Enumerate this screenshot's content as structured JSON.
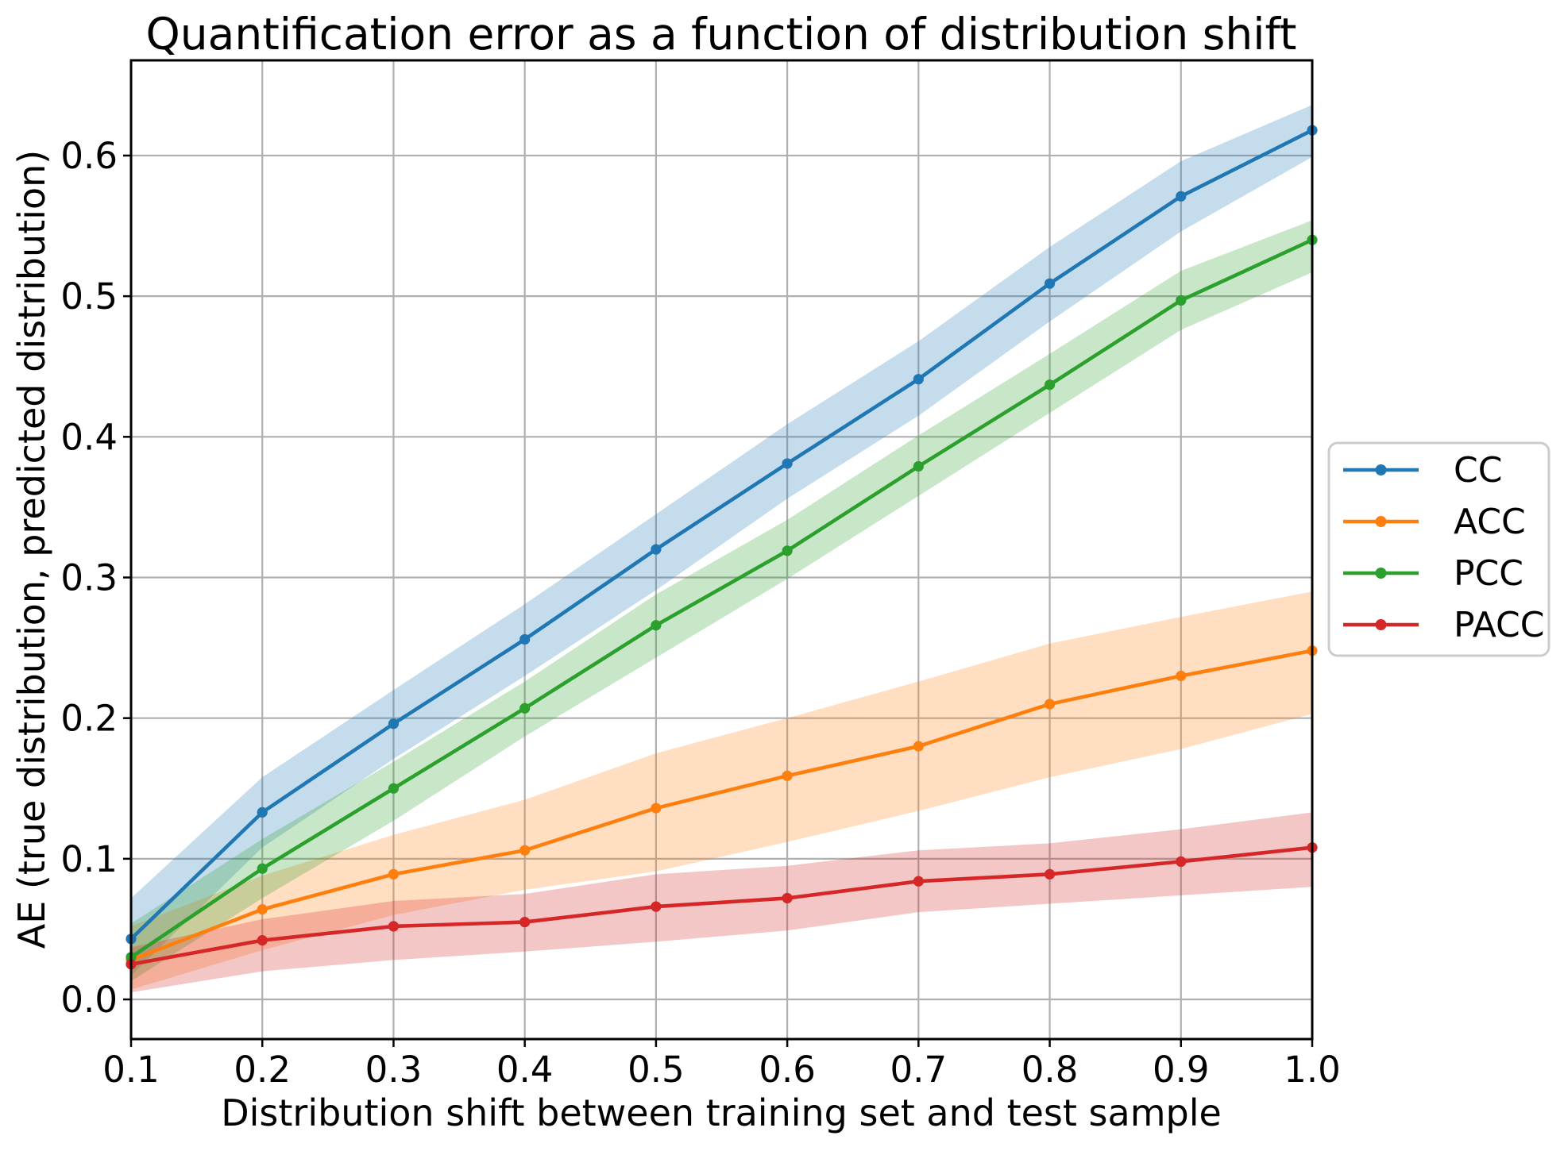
{
  "chart_data": {
    "type": "line",
    "title": "Quantification error as a function of distribution shift",
    "xlabel": "Distribution shift between training set and test sample",
    "ylabel": "AE (true distribution, predicted distribution)",
    "x": [
      0.1,
      0.2,
      0.3,
      0.4,
      0.5,
      0.6,
      0.7,
      0.8,
      0.9,
      1.0
    ],
    "xtick_labels": [
      "0.1",
      "0.2",
      "0.3",
      "0.4",
      "0.5",
      "0.6",
      "0.7",
      "0.8",
      "0.9",
      "1.0"
    ],
    "ytick_values": [
      0.0,
      0.1,
      0.2,
      0.3,
      0.4,
      0.5,
      0.6
    ],
    "ytick_labels": [
      "0.0",
      "0.1",
      "0.2",
      "0.3",
      "0.4",
      "0.5",
      "0.6"
    ],
    "xlim": [
      0.1,
      1.0
    ],
    "ylim": [
      -0.0282,
      0.6677
    ],
    "grid": true,
    "grid_color": "#b0b0b0",
    "spine_color": "#000000",
    "band_opacity": 0.26,
    "legend_position": "center-right-outside",
    "legend_border_color": "#cccccc",
    "series": [
      {
        "name": "CC",
        "color": "#1f77b4",
        "values": [
          0.043,
          0.133,
          0.196,
          0.256,
          0.32,
          0.381,
          0.441,
          0.509,
          0.571,
          0.618
        ],
        "band_lower": [
          0.017,
          0.108,
          0.171,
          0.23,
          0.291,
          0.356,
          0.415,
          0.482,
          0.546,
          0.599
        ],
        "band_upper": [
          0.072,
          0.158,
          0.22,
          0.281,
          0.345,
          0.409,
          0.468,
          0.535,
          0.596,
          0.636
        ]
      },
      {
        "name": "ACC",
        "color": "#ff7f0e",
        "values": [
          0.028,
          0.064,
          0.089,
          0.106,
          0.136,
          0.159,
          0.18,
          0.21,
          0.23,
          0.248
        ],
        "band_lower": [
          0.007,
          0.035,
          0.06,
          0.078,
          0.091,
          0.112,
          0.134,
          0.158,
          0.178,
          0.203
        ],
        "band_upper": [
          0.052,
          0.088,
          0.117,
          0.142,
          0.175,
          0.2,
          0.226,
          0.253,
          0.272,
          0.29
        ]
      },
      {
        "name": "PCC",
        "color": "#2ca02c",
        "values": [
          0.03,
          0.093,
          0.15,
          0.207,
          0.266,
          0.319,
          0.379,
          0.437,
          0.497,
          0.54
        ],
        "band_lower": [
          0.013,
          0.072,
          0.127,
          0.187,
          0.243,
          0.299,
          0.358,
          0.417,
          0.476,
          0.517
        ],
        "band_upper": [
          0.054,
          0.114,
          0.169,
          0.226,
          0.288,
          0.341,
          0.401,
          0.459,
          0.518,
          0.554
        ]
      },
      {
        "name": "PACC",
        "color": "#d62728",
        "values": [
          0.025,
          0.042,
          0.052,
          0.055,
          0.066,
          0.072,
          0.084,
          0.089,
          0.098,
          0.108
        ],
        "band_lower": [
          0.005,
          0.02,
          0.028,
          0.034,
          0.041,
          0.049,
          0.062,
          0.068,
          0.074,
          0.08
        ],
        "band_upper": [
          0.037,
          0.057,
          0.07,
          0.075,
          0.089,
          0.095,
          0.106,
          0.111,
          0.121,
          0.133
        ]
      }
    ]
  }
}
